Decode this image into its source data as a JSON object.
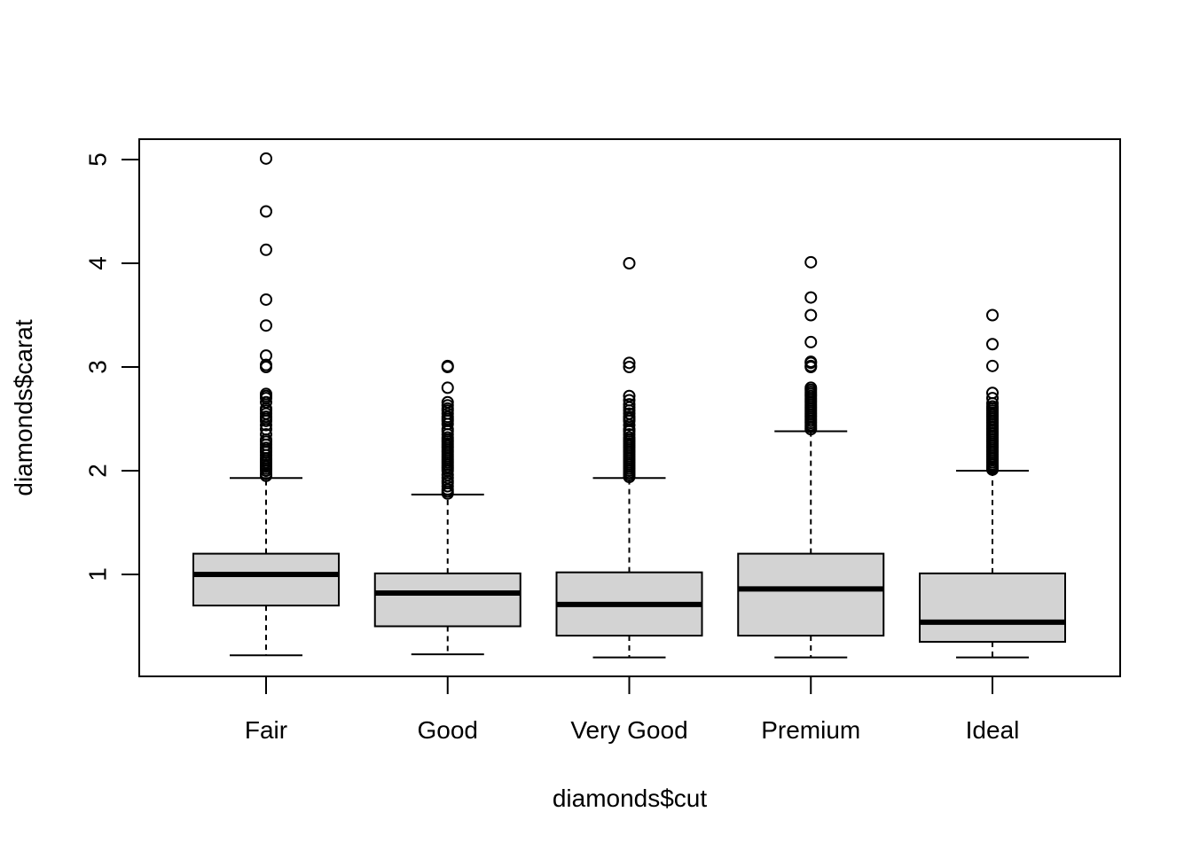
{
  "chart_data": {
    "type": "box",
    "title": "",
    "xlabel": "diamonds$cut",
    "ylabel": "diamonds$carat",
    "ylim": [
      0.0,
      5.2
    ],
    "yticks": [
      1,
      2,
      3,
      4,
      5
    ],
    "grid": false,
    "colors": {
      "box_fill": "#d3d3d3",
      "stroke": "#000000",
      "background": "#ffffff"
    },
    "categories": [
      "Fair",
      "Good",
      "Very Good",
      "Premium",
      "Ideal"
    ],
    "boxes": [
      {
        "name": "Fair",
        "min": 0.22,
        "q1": 0.7,
        "median": 1.0,
        "q3": 1.2,
        "max": 1.93,
        "outliers": [
          1.95,
          1.97,
          2.0,
          2.02,
          2.04,
          2.06,
          2.08,
          2.1,
          2.12,
          2.15,
          2.18,
          2.2,
          2.22,
          2.25,
          2.28,
          2.3,
          2.35,
          2.4,
          2.44,
          2.48,
          2.5,
          2.52,
          2.55,
          2.58,
          2.6,
          2.66,
          2.7,
          2.72,
          2.74,
          3.0,
          3.02,
          3.11,
          3.4,
          3.65,
          4.13,
          4.5,
          5.01
        ]
      },
      {
        "name": "Good",
        "min": 0.23,
        "q1": 0.5,
        "median": 0.82,
        "q3": 1.01,
        "max": 1.77,
        "outliers": [
          1.78,
          1.8,
          1.82,
          1.85,
          1.88,
          1.9,
          1.93,
          1.96,
          2.0,
          2.02,
          2.04,
          2.06,
          2.08,
          2.1,
          2.12,
          2.14,
          2.16,
          2.18,
          2.2,
          2.22,
          2.24,
          2.26,
          2.28,
          2.3,
          2.32,
          2.35,
          2.38,
          2.4,
          2.45,
          2.48,
          2.5,
          2.52,
          2.55,
          2.58,
          2.6,
          2.63,
          2.66,
          2.8,
          3.0,
          3.01
        ]
      },
      {
        "name": "Very Good",
        "min": 0.2,
        "q1": 0.41,
        "median": 0.71,
        "q3": 1.02,
        "max": 1.93,
        "outliers": [
          1.94,
          1.96,
          1.98,
          2.0,
          2.02,
          2.04,
          2.06,
          2.08,
          2.1,
          2.12,
          2.14,
          2.16,
          2.18,
          2.2,
          2.22,
          2.24,
          2.26,
          2.28,
          2.3,
          2.32,
          2.35,
          2.38,
          2.4,
          2.44,
          2.48,
          2.5,
          2.52,
          2.55,
          2.58,
          2.61,
          2.64,
          2.68,
          2.72,
          3.0,
          3.04,
          4.0
        ]
      },
      {
        "name": "Premium",
        "min": 0.2,
        "q1": 0.41,
        "median": 0.86,
        "q3": 1.2,
        "max": 2.38,
        "outliers": [
          2.4,
          2.42,
          2.44,
          2.46,
          2.48,
          2.5,
          2.52,
          2.54,
          2.56,
          2.58,
          2.6,
          2.62,
          2.64,
          2.66,
          2.68,
          2.7,
          2.72,
          2.74,
          2.76,
          2.78,
          2.8,
          3.0,
          3.01,
          3.04,
          3.05,
          3.24,
          3.5,
          3.67,
          4.01
        ]
      },
      {
        "name": "Ideal",
        "min": 0.2,
        "q1": 0.35,
        "median": 0.54,
        "q3": 1.01,
        "max": 2.0,
        "outliers": [
          2.01,
          2.02,
          2.03,
          2.04,
          2.06,
          2.08,
          2.1,
          2.12,
          2.14,
          2.16,
          2.18,
          2.2,
          2.22,
          2.24,
          2.26,
          2.28,
          2.3,
          2.32,
          2.34,
          2.36,
          2.38,
          2.4,
          2.42,
          2.44,
          2.46,
          2.48,
          2.5,
          2.52,
          2.54,
          2.56,
          2.58,
          2.6,
          2.62,
          2.65,
          2.7,
          2.75,
          3.01,
          3.22,
          3.5
        ]
      }
    ]
  }
}
